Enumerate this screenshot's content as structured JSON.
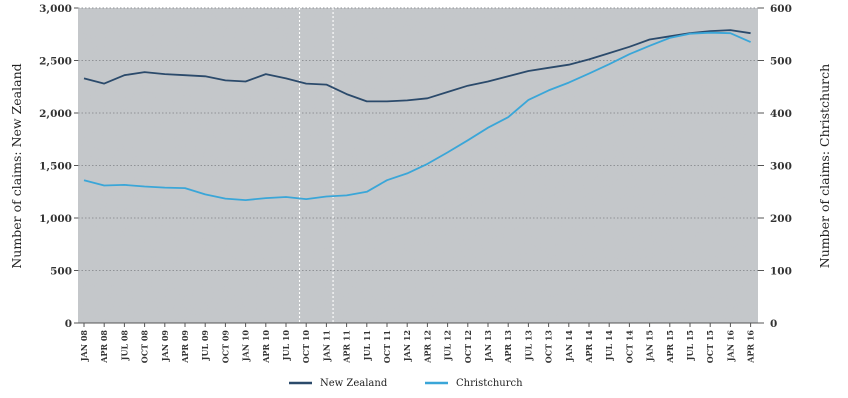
{
  "chart_data": {
    "type": "line",
    "title": "",
    "xlabel": "",
    "ylabel_left": "Number of claims: New Zealand",
    "ylabel_right": "Number of claims: Christchurch",
    "ylim_left": [
      0,
      3000
    ],
    "ylim_right": [
      0,
      600
    ],
    "yticks_left": [
      "0",
      "500",
      "1,000",
      "1,500",
      "2,000",
      "2,500",
      "3,000"
    ],
    "yticks_right": [
      "0",
      "100",
      "200",
      "300",
      "400",
      "500",
      "600"
    ],
    "x_tick_labels": [
      "JAN 08",
      "APR 08",
      "JUL 08",
      "OCT 08",
      "JAN 09",
      "APR 09",
      "JUL 09",
      "OCT 09",
      "JAN 10",
      "APR 10",
      "JUL 10",
      "OCT 10",
      "JAN 11",
      "APR 11",
      "JUL 11",
      "OCT 11",
      "JAN 12",
      "APR 12",
      "JUL 12",
      "OCT 12",
      "JAN 13",
      "APR 13",
      "JUL 13",
      "OCT 13",
      "JAN 14",
      "APR 14",
      "JUL 14",
      "OCT 14",
      "JAN 15",
      "APR 15",
      "JUL 15",
      "OCT 15",
      "JAN 16",
      "APR 16"
    ],
    "reference_lines": [
      "SEP 10",
      "FEB 11"
    ],
    "grid": "horizontal dotted",
    "legend_position": "bottom-center",
    "series": [
      {
        "name": "New Zealand",
        "axis": "left",
        "color": "#2b4a6b",
        "values": [
          2330,
          2280,
          2360,
          2390,
          2370,
          2360,
          2350,
          2310,
          2300,
          2370,
          2330,
          2280,
          2270,
          2180,
          2110,
          2110,
          2120,
          2140,
          2200,
          2260,
          2300,
          2350,
          2400,
          2430,
          2460,
          2510,
          2570,
          2630,
          2700,
          2730,
          2760,
          2780,
          2790,
          2760
        ]
      },
      {
        "name": "Christchurch",
        "axis": "right",
        "color": "#3aa6d8",
        "values": [
          272,
          262,
          263,
          260,
          258,
          257,
          245,
          237,
          234,
          238,
          240,
          236,
          241,
          243,
          250,
          272,
          285,
          303,
          325,
          348,
          372,
          392,
          425,
          443,
          458,
          475,
          493,
          512,
          528,
          543,
          551,
          553,
          552,
          535
        ]
      }
    ]
  }
}
